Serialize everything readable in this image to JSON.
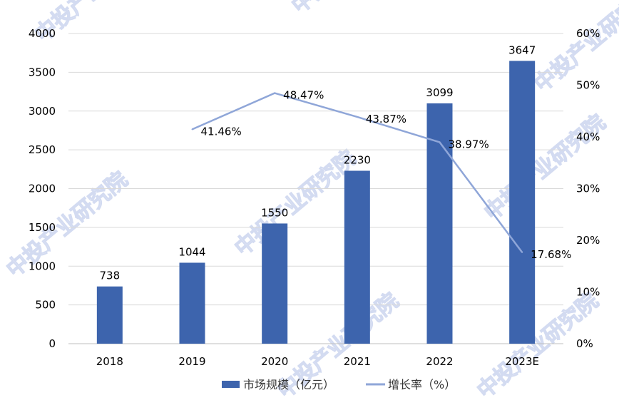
{
  "chart_data": {
    "type": "bar+line",
    "categories": [
      "2018",
      "2019",
      "2020",
      "2021",
      "2022",
      "2023E"
    ],
    "series": [
      {
        "name": "市场规模（亿元）",
        "type": "bar",
        "axis": "left",
        "color": "#3d64ad",
        "values": [
          738,
          1044,
          1550,
          2230,
          3099,
          3647
        ],
        "labels": [
          "738",
          "1044",
          "1550",
          "2230",
          "3099",
          "3647"
        ]
      },
      {
        "name": "增长率（%）",
        "type": "line",
        "axis": "right",
        "color": "#8fa6d8",
        "values": [
          null,
          41.46,
          48.47,
          43.87,
          38.97,
          17.68
        ],
        "labels": [
          "",
          "41.46%",
          "48.47%",
          "43.87%",
          "38.97%",
          "17.68%"
        ]
      }
    ],
    "left_axis": {
      "ylim": [
        0,
        4000
      ],
      "ticks": [
        "0",
        "500",
        "1000",
        "1500",
        "2000",
        "2500",
        "3000",
        "3500",
        "4000"
      ]
    },
    "right_axis": {
      "ylim": [
        0,
        60
      ],
      "ticks": [
        "0%",
        "10%",
        "20%",
        "30%",
        "40%",
        "50%",
        "60%"
      ]
    },
    "grid": true,
    "legend": "bottom",
    "watermark": "中投产业研究院"
  }
}
